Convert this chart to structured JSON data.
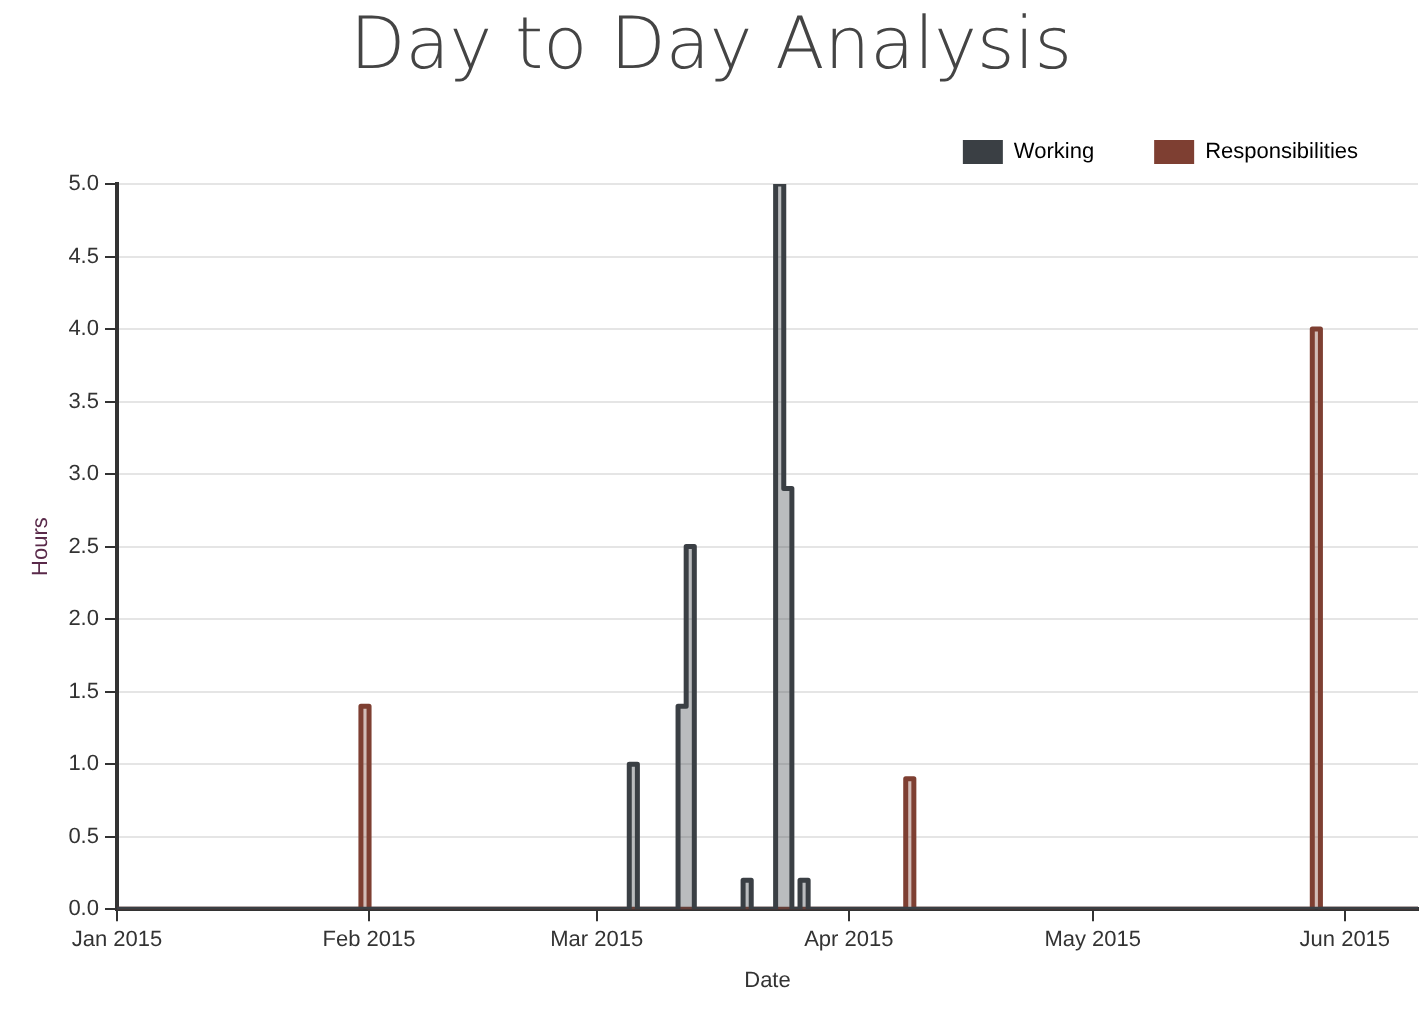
{
  "chart_data": {
    "type": "step",
    "title": "Day to Day Analysis",
    "xlabel": "Date",
    "ylabel": "Hours",
    "series": [
      {
        "name": "Working",
        "color": "#3a3f44",
        "x": [
          "2015-01-01",
          "2015-03-05",
          "2015-03-06",
          "2015-03-11",
          "2015-03-12",
          "2015-03-13",
          "2015-03-19",
          "2015-03-20",
          "2015-03-23",
          "2015-03-24",
          "2015-03-25",
          "2015-03-26",
          "2015-03-27",
          "2015-06-10"
        ],
        "values": [
          0,
          1.0,
          0,
          1.4,
          2.5,
          0,
          0.2,
          0,
          5.0,
          2.9,
          0,
          0.2,
          0,
          0
        ]
      },
      {
        "name": "Responsibilities",
        "color": "#7e3f32",
        "x": [
          "2015-01-01",
          "2015-01-31",
          "2015-02-01",
          "2015-04-08",
          "2015-04-09",
          "2015-05-28",
          "2015-05-29",
          "2015-06-10"
        ],
        "values": [
          0,
          1.4,
          0,
          0.9,
          0,
          4.0,
          0,
          0
        ]
      }
    ],
    "xlim": [
      "2015-01-01",
      "2015-06-10"
    ],
    "xticks": [
      {
        "value": "2015-01-01",
        "label": "Jan 2015"
      },
      {
        "value": "2015-02-01",
        "label": "Feb 2015"
      },
      {
        "value": "2015-03-01",
        "label": "Mar 2015"
      },
      {
        "value": "2015-04-01",
        "label": "Apr 2015"
      },
      {
        "value": "2015-05-01",
        "label": "May 2015"
      },
      {
        "value": "2015-06-01",
        "label": "Jun 2015"
      }
    ],
    "ylim": [
      0,
      5
    ],
    "yticks": [
      {
        "value": 0,
        "label": "0.0"
      },
      {
        "value": 0.5,
        "label": "0.5"
      },
      {
        "value": 1,
        "label": "1.0"
      },
      {
        "value": 1.5,
        "label": "1.5"
      },
      {
        "value": 2,
        "label": "2.0"
      },
      {
        "value": 2.5,
        "label": "2.5"
      },
      {
        "value": 3,
        "label": "3.0"
      },
      {
        "value": 3.5,
        "label": "3.5"
      },
      {
        "value": 4,
        "label": "4.0"
      },
      {
        "value": 4.5,
        "label": "4.5"
      },
      {
        "value": 5,
        "label": "5.0"
      }
    ],
    "grid": "y",
    "legend": "top right",
    "marker": "none",
    "line_style": "solid"
  }
}
